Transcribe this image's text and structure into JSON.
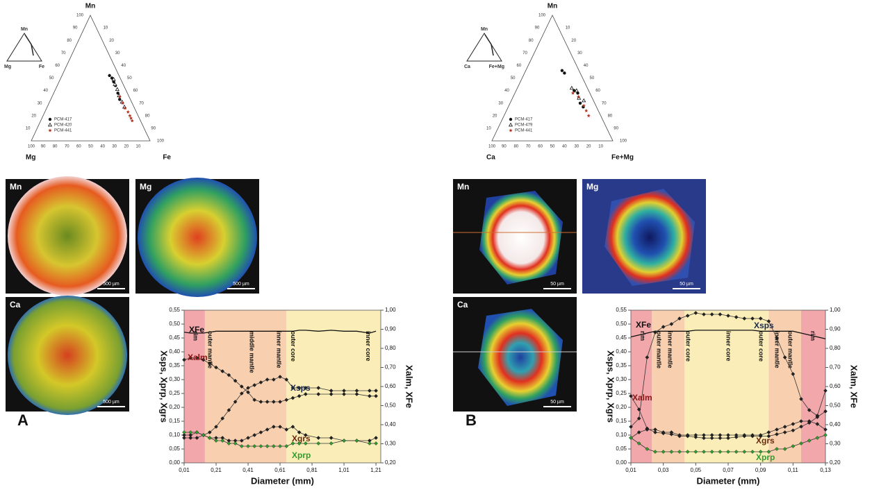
{
  "chart_data": [
    {
      "type": "ternary",
      "apex_labels": [
        "Mn",
        "Mg",
        "Fe"
      ],
      "inset_labels": [
        "Mn",
        "Mg",
        "Fe"
      ],
      "ticks": [
        10,
        20,
        30,
        40,
        50,
        60,
        70,
        80,
        90,
        100
      ],
      "series": [
        {
          "name": "PCM-417",
          "marker": "circle",
          "color": "#111111",
          "values": [
            52,
            50,
            47,
            44,
            38,
            33
          ],
          "x": [
            40,
            43,
            46,
            49,
            54,
            58
          ]
        },
        {
          "name": "PCM-420",
          "marker": "triangle",
          "color": "#111111",
          "values": [
            49,
            45,
            41,
            36,
            31,
            27
          ],
          "x": [
            45,
            48,
            52,
            56,
            61,
            65
          ]
        },
        {
          "name": "PCM-441",
          "marker": "star",
          "color": "#b0301c",
          "values": [
            35,
            30,
            26,
            23,
            20,
            18,
            16
          ],
          "x": [
            57,
            62,
            66,
            70,
            73,
            75,
            77
          ]
        }
      ]
    },
    {
      "type": "ternary",
      "apex_labels": [
        "Mn",
        "Ca",
        "Fe+Mg"
      ],
      "inset_labels": [
        "Mn",
        "Ca",
        "Fe+Mg"
      ],
      "ticks": [
        10,
        20,
        30,
        40,
        50,
        60,
        70,
        80,
        90,
        100
      ],
      "series": [
        {
          "name": "PCM-417",
          "marker": "circle",
          "color": "#111111",
          "values": [
            56,
            54,
            40,
            38,
            30,
            27
          ],
          "x": [
            30,
            33,
            48,
            52,
            58,
            62
          ]
        },
        {
          "name": "PCM-479",
          "marker": "triangle",
          "color": "#111111",
          "values": [
            42,
            40,
            34,
            32
          ],
          "x": [
            45,
            50,
            55,
            60
          ]
        },
        {
          "name": "PCM-441",
          "marker": "star",
          "color": "#b0301c",
          "values": [
            38,
            35,
            28,
            24,
            20
          ],
          "x": [
            48,
            54,
            62,
            66,
            70
          ]
        }
      ]
    },
    {
      "type": "line",
      "x_label": "Diameter (mm)",
      "y_label": "Xsps, Xprp, Xgrs",
      "y2_label": "Xalm, XFe",
      "xlim": [
        0.01,
        1.24
      ],
      "ylim": [
        0,
        0.55
      ],
      "y2lim": [
        0.2,
        1.0
      ],
      "xticks": [
        {
          "value": 0.01,
          "label": "0,01"
        },
        {
          "value": 0.21,
          "label": "0,21"
        },
        {
          "value": 0.41,
          "label": "0,41"
        },
        {
          "value": 0.61,
          "label": "0,61"
        },
        {
          "value": 0.81,
          "label": "0,81"
        },
        {
          "value": 1.01,
          "label": "1,01"
        },
        {
          "value": 1.21,
          "label": "1,21"
        }
      ],
      "yticks": [
        {
          "value": 0,
          "label": "0,00"
        },
        {
          "value": 0.05,
          "label": "0,05"
        },
        {
          "value": 0.1,
          "label": "0,10"
        },
        {
          "value": 0.15,
          "label": "0,15"
        },
        {
          "value": 0.2,
          "label": "0,20"
        },
        {
          "value": 0.25,
          "label": "0,25"
        },
        {
          "value": 0.3,
          "label": "0,30"
        },
        {
          "value": 0.35,
          "label": "0,35"
        },
        {
          "value": 0.4,
          "label": "0,40"
        },
        {
          "value": 0.45,
          "label": "0,45"
        },
        {
          "value": 0.5,
          "label": "0,50"
        },
        {
          "value": 0.55,
          "label": "0,55"
        }
      ],
      "y2ticks": [
        {
          "value": 0.2,
          "label": "0,20"
        },
        {
          "value": 0.3,
          "label": "0,30"
        },
        {
          "value": 0.4,
          "label": "0,40"
        },
        {
          "value": 0.5,
          "label": "0,50"
        },
        {
          "value": 0.6,
          "label": "0,60"
        },
        {
          "value": 0.7,
          "label": "0,70"
        },
        {
          "value": 0.8,
          "label": "0,80"
        },
        {
          "value": 0.9,
          "label": "0,90"
        },
        {
          "value": 1.0,
          "label": "1,00"
        }
      ],
      "zones": [
        {
          "start": 0.01,
          "end": 0.14,
          "color": "#f2a7ab"
        },
        {
          "start": 0.14,
          "end": 0.65,
          "color": "#f8d0b0"
        },
        {
          "start": 0.65,
          "end": 1.24,
          "color": "#faedb8"
        }
      ],
      "zone_labels": [
        {
          "label": "rim",
          "x": 0.08
        },
        {
          "label": "outer mantle",
          "x": 0.17
        },
        {
          "label": "middle mantle",
          "x": 0.43
        },
        {
          "label": "inner mantle",
          "x": 0.6
        },
        {
          "label": "outer core",
          "x": 0.69
        },
        {
          "label": "inner core",
          "x": 1.16
        }
      ],
      "x": [
        0.01,
        0.05,
        0.09,
        0.13,
        0.17,
        0.21,
        0.25,
        0.29,
        0.33,
        0.37,
        0.41,
        0.45,
        0.49,
        0.53,
        0.57,
        0.61,
        0.65,
        0.69,
        0.73,
        0.77,
        0.85,
        0.93,
        1.01,
        1.09,
        1.17,
        1.21
      ],
      "series": [
        {
          "name": "XFe",
          "axis": "y2",
          "color": "#111111",
          "markers": false,
          "values": [
            0.885,
            0.88,
            0.88,
            0.88,
            0.885,
            0.89,
            0.89,
            0.89,
            0.89,
            0.89,
            0.89,
            0.89,
            0.89,
            0.89,
            0.89,
            0.89,
            0.89,
            0.89,
            0.895,
            0.895,
            0.89,
            0.895,
            0.89,
            0.89,
            0.88,
            0.89
          ]
        },
        {
          "name": "Xalm",
          "axis": "y2",
          "color": "#8a1414",
          "markers": true,
          "values": [
            0.74,
            0.75,
            0.75,
            0.74,
            0.72,
            0.7,
            0.68,
            0.66,
            0.63,
            0.6,
            0.57,
            0.53,
            0.52,
            0.52,
            0.52,
            0.52,
            0.53,
            0.54,
            0.55,
            0.56,
            0.56,
            0.56,
            0.56,
            0.56,
            0.55,
            0.55
          ]
        },
        {
          "name": "Xsps",
          "color": "#1c2c4c",
          "markers": true,
          "values": [
            0.09,
            0.09,
            0.09,
            0.1,
            0.11,
            0.13,
            0.16,
            0.19,
            0.22,
            0.25,
            0.27,
            0.28,
            0.29,
            0.3,
            0.3,
            0.31,
            0.3,
            0.27,
            0.27,
            0.27,
            0.27,
            0.26,
            0.26,
            0.26,
            0.26,
            0.26
          ]
        },
        {
          "name": "Xgrs",
          "color": "#6b2a10",
          "markers": true,
          "values": [
            0.1,
            0.1,
            0.11,
            0.1,
            0.09,
            0.09,
            0.09,
            0.08,
            0.08,
            0.08,
            0.09,
            0.1,
            0.11,
            0.12,
            0.13,
            0.13,
            0.12,
            0.13,
            0.11,
            0.1,
            0.09,
            0.09,
            0.08,
            0.08,
            0.08,
            0.09
          ]
        },
        {
          "name": "Xprp",
          "color": "#2e9e2e",
          "markers": true,
          "values": [
            0.11,
            0.11,
            0.11,
            0.1,
            0.09,
            0.08,
            0.08,
            0.07,
            0.07,
            0.06,
            0.06,
            0.06,
            0.06,
            0.06,
            0.06,
            0.06,
            0.06,
            0.07,
            0.07,
            0.07,
            0.07,
            0.07,
            0.08,
            0.08,
            0.07,
            0.07
          ]
        }
      ]
    },
    {
      "type": "line",
      "x_label": "Diameter (mm)",
      "y_label": "Xsps, Xprp, Xgrs",
      "y2_label": "Xalm, XFe",
      "xlim": [
        0.01,
        0.13
      ],
      "ylim": [
        0,
        0.55
      ],
      "y2lim": [
        0.2,
        1.0
      ],
      "xticks": [
        {
          "value": 0.01,
          "label": "0,01"
        },
        {
          "value": 0.03,
          "label": "0,03"
        },
        {
          "value": 0.05,
          "label": "0,05"
        },
        {
          "value": 0.07,
          "label": "0,07"
        },
        {
          "value": 0.09,
          "label": "0,09"
        },
        {
          "value": 0.11,
          "label": "0,11"
        },
        {
          "value": 0.13,
          "label": "0,13"
        }
      ],
      "yticks": [
        {
          "value": 0,
          "label": "0,00"
        },
        {
          "value": 0.05,
          "label": "0,05"
        },
        {
          "value": 0.1,
          "label": "0,10"
        },
        {
          "value": 0.15,
          "label": "0,15"
        },
        {
          "value": 0.2,
          "label": "0,20"
        },
        {
          "value": 0.25,
          "label": "0,25"
        },
        {
          "value": 0.3,
          "label": "0,30"
        },
        {
          "value": 0.35,
          "label": "0,35"
        },
        {
          "value": 0.4,
          "label": "0,40"
        },
        {
          "value": 0.45,
          "label": "0,45"
        },
        {
          "value": 0.5,
          "label": "0,50"
        },
        {
          "value": 0.55,
          "label": "0,55"
        }
      ],
      "y2ticks": [
        {
          "value": 0.2,
          "label": "0,20"
        },
        {
          "value": 0.3,
          "label": "0,30"
        },
        {
          "value": 0.4,
          "label": "0,40"
        },
        {
          "value": 0.5,
          "label": "0,50"
        },
        {
          "value": 0.6,
          "label": "0,60"
        },
        {
          "value": 0.7,
          "label": "0,70"
        },
        {
          "value": 0.8,
          "label": "0,80"
        },
        {
          "value": 0.9,
          "label": "0,90"
        },
        {
          "value": 1.0,
          "label": "1,00"
        }
      ],
      "zones": [
        {
          "start": 0.01,
          "end": 0.023,
          "color": "#f2a7ab"
        },
        {
          "start": 0.023,
          "end": 0.043,
          "color": "#f8d0b0"
        },
        {
          "start": 0.043,
          "end": 0.095,
          "color": "#faedb8"
        },
        {
          "start": 0.095,
          "end": 0.115,
          "color": "#f8d0b0"
        },
        {
          "start": 0.115,
          "end": 0.13,
          "color": "#f2a7ab"
        }
      ],
      "zone_labels": [
        {
          "label": "rim",
          "x": 0.017
        },
        {
          "label": "outer mantle",
          "x": 0.027
        },
        {
          "label": "inner mantle",
          "x": 0.034
        },
        {
          "label": "outer core",
          "x": 0.045
        },
        {
          "label": "inner core",
          "x": 0.07
        },
        {
          "label": "outer core",
          "x": 0.09
        },
        {
          "label": "inner mantle",
          "x": 0.1
        },
        {
          "label": "outer mantle",
          "x": 0.108
        },
        {
          "label": "rim",
          "x": 0.122
        }
      ],
      "x": [
        0.01,
        0.015,
        0.02,
        0.025,
        0.03,
        0.035,
        0.04,
        0.045,
        0.05,
        0.055,
        0.06,
        0.065,
        0.07,
        0.075,
        0.08,
        0.085,
        0.09,
        0.095,
        0.1,
        0.105,
        0.11,
        0.115,
        0.12,
        0.125,
        0.13
      ],
      "series": [
        {
          "name": "XFe",
          "axis": "y2",
          "color": "#111111",
          "markers": false,
          "values": [
            0.86,
            0.87,
            0.88,
            0.89,
            0.89,
            0.89,
            0.89,
            0.89,
            0.895,
            0.895,
            0.895,
            0.895,
            0.895,
            0.895,
            0.895,
            0.895,
            0.89,
            0.89,
            0.89,
            0.89,
            0.89,
            0.88,
            0.87,
            0.86,
            0.85
          ]
        },
        {
          "name": "Xalm",
          "axis": "y2",
          "color": "#8a1414",
          "markers": true,
          "values": [
            0.55,
            0.48,
            0.38,
            0.36,
            0.355,
            0.35,
            0.34,
            0.34,
            0.335,
            0.33,
            0.33,
            0.33,
            0.33,
            0.335,
            0.34,
            0.34,
            0.34,
            0.34,
            0.35,
            0.36,
            0.37,
            0.39,
            0.41,
            0.44,
            0.47
          ]
        },
        {
          "name": "Xsps",
          "color": "#1c2c4c",
          "markers": true,
          "values": [
            0.13,
            0.16,
            0.38,
            0.47,
            0.49,
            0.5,
            0.52,
            0.53,
            0.54,
            0.535,
            0.535,
            0.535,
            0.53,
            0.525,
            0.52,
            0.52,
            0.52,
            0.51,
            0.45,
            0.38,
            0.32,
            0.23,
            0.19,
            0.17,
            0.26
          ]
        },
        {
          "name": "Xgrs",
          "color": "#6b2a10",
          "markers": true,
          "values": [
            0.09,
            0.11,
            0.12,
            0.12,
            0.11,
            0.11,
            0.1,
            0.1,
            0.1,
            0.1,
            0.1,
            0.1,
            0.1,
            0.1,
            0.1,
            0.1,
            0.1,
            0.11,
            0.12,
            0.13,
            0.14,
            0.15,
            0.15,
            0.14,
            0.12
          ]
        },
        {
          "name": "Xprp",
          "color": "#2e9e2e",
          "markers": true,
          "values": [
            0.09,
            0.07,
            0.05,
            0.04,
            0.04,
            0.04,
            0.04,
            0.04,
            0.04,
            0.04,
            0.04,
            0.04,
            0.04,
            0.04,
            0.04,
            0.04,
            0.04,
            0.04,
            0.05,
            0.05,
            0.06,
            0.07,
            0.08,
            0.09,
            0.1
          ]
        }
      ]
    }
  ],
  "maps": [
    {
      "label": "Mn",
      "scale": "500 µm"
    },
    {
      "label": "Mg",
      "scale": "500 µm"
    },
    {
      "label": "Ca",
      "scale": "500 µm"
    },
    {
      "label": "Mn",
      "scale": "50 µm"
    },
    {
      "label": "Mg",
      "scale": "50 µm"
    },
    {
      "label": "Ca",
      "scale": "50 µm"
    }
  ],
  "panel_labels": [
    "A",
    "B"
  ]
}
